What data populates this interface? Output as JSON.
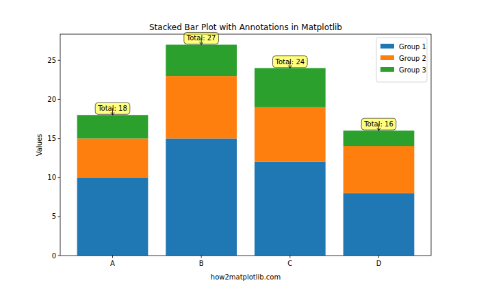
{
  "chart_data": {
    "type": "bar",
    "stacked": true,
    "title": "Stacked Bar Plot with Annotations in Matplotlib",
    "x_label": "how2matplotlib.com",
    "y_label": "Values",
    "categories": [
      "A",
      "B",
      "C",
      "D"
    ],
    "series": [
      {
        "name": "Group 1",
        "color": "#1f77b4",
        "values": [
          10,
          15,
          12,
          8
        ]
      },
      {
        "name": "Group 2",
        "color": "#ff7f0e",
        "values": [
          5,
          8,
          7,
          6
        ]
      },
      {
        "name": "Group 3",
        "color": "#2ca02c",
        "values": [
          3,
          4,
          5,
          2
        ]
      }
    ],
    "annotations": [
      "Total: 18",
      "Total: 27",
      "Total: 24",
      "Total: 16"
    ],
    "ylim": [
      0,
      28.35
    ],
    "yticks": [
      0,
      5,
      10,
      15,
      20,
      25
    ],
    "legend": "upper right",
    "grid": false
  }
}
